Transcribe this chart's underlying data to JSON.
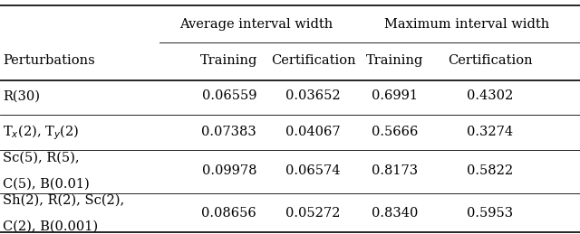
{
  "col_headers_top": [
    "Average interval width",
    "Maximum interval width"
  ],
  "col_headers_sub": [
    "Training",
    "Certification",
    "Training",
    "Certification"
  ],
  "row_labels_lines": [
    [
      "R(30)"
    ],
    [
      "T$_x$(2), T$_y$(2)"
    ],
    [
      "Sc(5), R(5),",
      "C(5), B(0.01)"
    ],
    [
      "Sh(2), R(2), Sc(2),",
      "C(2), B(0.001)"
    ]
  ],
  "data": [
    [
      "0.06559",
      "0.03652",
      "0.6991",
      "0.4302"
    ],
    [
      "0.07383",
      "0.04067",
      "0.5666",
      "0.3274"
    ],
    [
      "0.09978",
      "0.06574",
      "0.8173",
      "0.5822"
    ],
    [
      "0.08656",
      "0.05272",
      "0.8340",
      "0.5953"
    ]
  ],
  "col_label": "Perturbations",
  "bg_color": "#ffffff",
  "text_color": "#000000",
  "line_color": "#000000",
  "font_size": 10.5
}
